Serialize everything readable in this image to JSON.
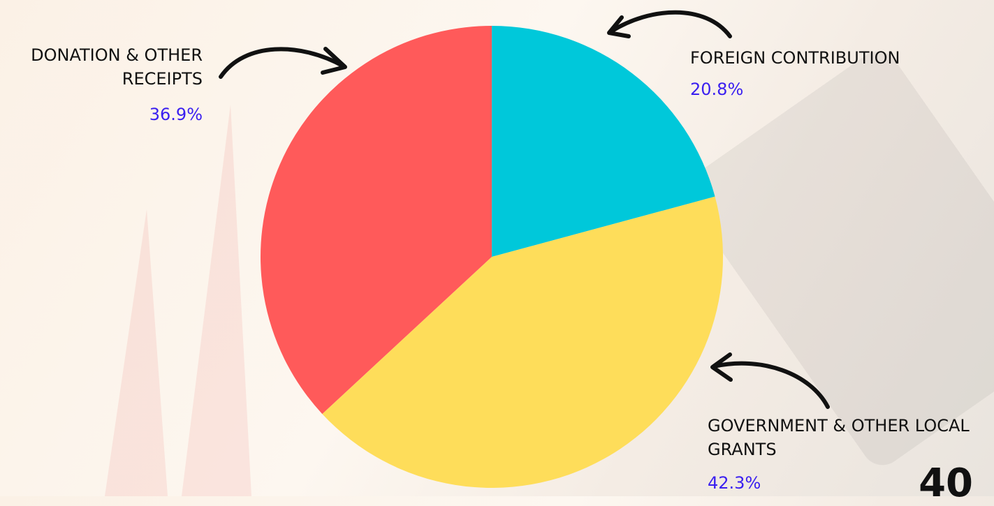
{
  "chart_data": {
    "type": "pie",
    "categories": [
      "FOREIGN CONTRIBUTION",
      "GOVERNMENT & OTHER LOCAL GRANTS",
      "DONATION & OTHER RECEIPTS"
    ],
    "values": [
      20.8,
      42.3,
      36.9
    ],
    "value_labels": [
      "20.8%",
      "42.3%",
      "36.9%"
    ],
    "colors": [
      "#00c8da",
      "#fedd5a",
      "#ff5a5a"
    ],
    "start_angle": 0,
    "direction": "clockwise"
  },
  "page_number": "40"
}
